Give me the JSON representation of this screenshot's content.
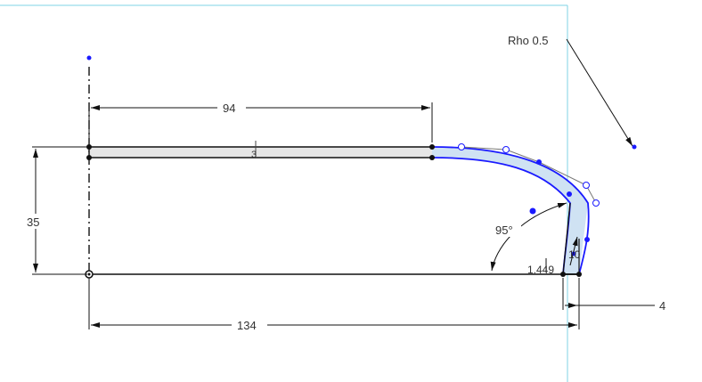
{
  "sketch": {
    "dimensions": {
      "top_length": "94",
      "bottom_length": "134",
      "height": "35",
      "angle": "95°",
      "right_offset": "4",
      "small_value": "1.449",
      "small_value_2": "10"
    },
    "rho_label": "Rho 0.5",
    "thickness_glyph": "3"
  },
  "colors": {
    "sketch_line": "#111111",
    "selected_curve": "#1a1aff",
    "fill": "#e6e6e6",
    "selected_fill": "#cfe2f3",
    "view_border": "#7fd3e6",
    "dimension_text": "#333333"
  }
}
